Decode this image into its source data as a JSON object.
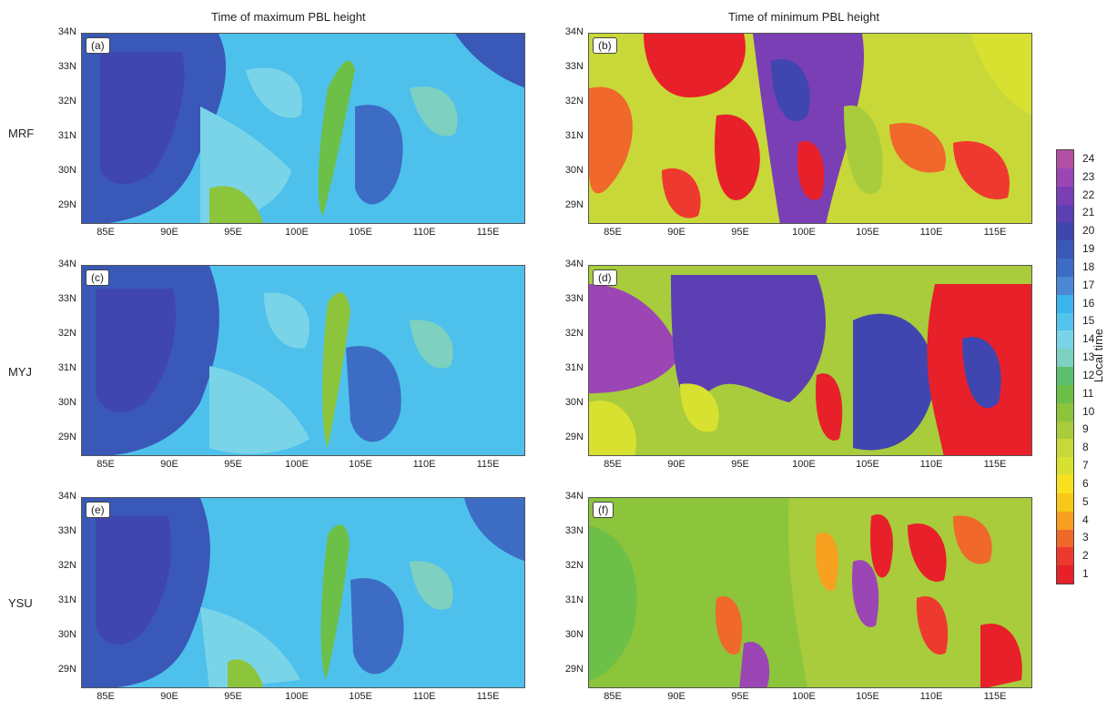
{
  "columns": [
    "Time of maximum PBL height",
    "Time of minimum PBL height"
  ],
  "rows": [
    "MRF",
    "MYJ",
    "YSU"
  ],
  "panels": [
    "(a)",
    "(b)",
    "(c)",
    "(d)",
    "(e)",
    "(f)"
  ],
  "lat_ticks": [
    "34N",
    "33N",
    "32N",
    "31N",
    "30N",
    "29N"
  ],
  "lon_ticks": [
    "85E",
    "90E",
    "95E",
    "100E",
    "105E",
    "110E",
    "115E"
  ],
  "colorbar": {
    "title": "Local time",
    "ticks": [
      "24",
      "23",
      "22",
      "21",
      "20",
      "19",
      "18",
      "17",
      "16",
      "15",
      "14",
      "13",
      "12",
      "11",
      "10",
      "9",
      "8",
      "7",
      "6",
      "5",
      "4",
      "3",
      "2",
      "1"
    ],
    "colors": [
      "#b44fa6",
      "#9b46b4",
      "#7a3fb4",
      "#5d3fb4",
      "#4046b0",
      "#3a58b8",
      "#3c6cc4",
      "#4a88d4",
      "#3ab4ec",
      "#52c4ee",
      "#7ad4e8",
      "#7ed0c0",
      "#5cc070",
      "#6cc048",
      "#8cc43c",
      "#a8cc3c",
      "#c8d838",
      "#d8e030",
      "#f8e020",
      "#f8c818",
      "#f8a020",
      "#f0682a",
      "#ee3a2e",
      "#e8202a"
    ]
  }
}
